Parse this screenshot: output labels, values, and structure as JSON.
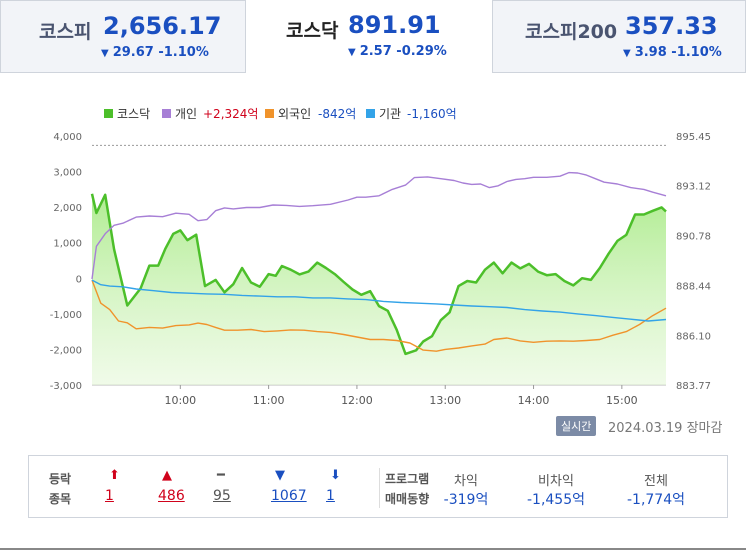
{
  "tabs": [
    {
      "name": "코스피",
      "value": "2,656.17",
      "change": "29.67 -1.10%",
      "arrow": "▼",
      "active": false
    },
    {
      "name": "코스닥",
      "value": "891.91",
      "change": "2.57 -0.29%",
      "arrow": "▼",
      "active": true
    },
    {
      "name": "코스피200",
      "value": "357.33",
      "change": "3.98 -1.10%",
      "arrow": "▼",
      "active": false
    }
  ],
  "legend": [
    {
      "name": "코스닥",
      "value": "",
      "color": "#4cbf2a"
    },
    {
      "name": "개인",
      "value": "+2,324억",
      "color": "#a77fd6",
      "value_color": "#d0021b"
    },
    {
      "name": "외국인",
      "value": "-842억",
      "color": "#f0932b",
      "value_color": "#1a4fc0"
    },
    {
      "name": "기관",
      "value": "-1,160억",
      "color": "#33a3e8",
      "value_color": "#1a4fc0"
    }
  ],
  "chart_data": {
    "type": "line",
    "title": "",
    "x_ticks": [
      "10:00",
      "11:00",
      "12:00",
      "13:00",
      "14:00",
      "15:00"
    ],
    "y_left_ticks": [
      "4,000",
      "3,000",
      "2,000",
      "1,000",
      "0",
      "-1,000",
      "-2,000",
      "-3,000"
    ],
    "y_right_ticks": [
      "895.45",
      "893.12",
      "890.78",
      "888.44",
      "886.10",
      "883.77"
    ],
    "ylim_left": [
      -3000,
      4000
    ],
    "ylim_right": [
      883.77,
      895.45
    ],
    "xlim_hours": [
      9.0,
      15.5
    ],
    "reference_line": 895.01,
    "series": [
      {
        "name": "코스닥",
        "axis": "right",
        "color": "#4cbf2a",
        "x": [
          9.0,
          9.05,
          9.15,
          9.25,
          9.4,
          9.55,
          9.65,
          9.75,
          9.83,
          9.92,
          10.0,
          10.08,
          10.18,
          10.28,
          10.4,
          10.5,
          10.6,
          10.7,
          10.8,
          10.9,
          11.0,
          11.08,
          11.15,
          11.25,
          11.35,
          11.45,
          11.55,
          11.65,
          11.75,
          11.85,
          11.95,
          12.05,
          12.15,
          12.25,
          12.35,
          12.45,
          12.55,
          12.67,
          12.75,
          12.85,
          12.95,
          13.05,
          13.15,
          13.25,
          13.35,
          13.45,
          13.55,
          13.65,
          13.75,
          13.85,
          13.95,
          14.05,
          14.15,
          14.25,
          14.35,
          14.45,
          14.55,
          14.65,
          14.75,
          14.85,
          14.95,
          15.05,
          15.15,
          15.25,
          15.35,
          15.45,
          15.5
        ],
        "y": [
          892.74,
          891.84,
          892.69,
          890.13,
          887.5,
          888.3,
          889.37,
          889.37,
          890.16,
          890.86,
          891.02,
          890.56,
          890.82,
          888.41,
          888.7,
          888.12,
          888.5,
          889.26,
          888.58,
          888.38,
          888.97,
          888.89,
          889.35,
          889.18,
          888.96,
          889.09,
          889.51,
          889.26,
          888.97,
          888.6,
          888.25,
          888.0,
          888.17,
          887.47,
          887.25,
          886.36,
          885.23,
          885.4,
          885.81,
          886.06,
          886.81,
          887.18,
          888.41,
          888.65,
          888.58,
          889.18,
          889.51,
          889.01,
          889.51,
          889.24,
          889.45,
          889.09,
          888.92,
          888.97,
          888.65,
          888.44,
          888.78,
          888.7,
          889.26,
          889.93,
          890.53,
          890.81,
          891.77,
          891.77,
          891.94,
          892.1,
          891.91
        ]
      },
      {
        "name": "개인",
        "axis": "left",
        "color": "#a77fd6",
        "x": [
          9.0,
          9.05,
          9.15,
          9.25,
          9.35,
          9.5,
          9.65,
          9.8,
          9.95,
          10.1,
          10.2,
          10.3,
          10.4,
          10.5,
          10.6,
          10.75,
          10.9,
          11.05,
          11.2,
          11.35,
          11.5,
          11.7,
          11.9,
          12.0,
          12.1,
          12.25,
          12.4,
          12.55,
          12.65,
          12.8,
          12.95,
          13.1,
          13.2,
          13.3,
          13.4,
          13.5,
          13.6,
          13.7,
          13.8,
          13.9,
          14.0,
          14.15,
          14.3,
          14.4,
          14.5,
          14.6,
          14.7,
          14.8,
          14.95,
          15.1,
          15.25,
          15.35,
          15.5
        ],
        "y": [
          -0.02,
          0.9,
          1.25,
          1.49,
          1.55,
          1.72,
          1.75,
          1.73,
          1.83,
          1.8,
          1.62,
          1.65,
          1.9,
          1.98,
          1.95,
          1.99,
          1.99,
          2.06,
          2.05,
          2.02,
          2.04,
          2.08,
          2.2,
          2.28,
          2.28,
          2.32,
          2.5,
          2.62,
          2.83,
          2.85,
          2.8,
          2.75,
          2.68,
          2.64,
          2.65,
          2.55,
          2.6,
          2.72,
          2.78,
          2.8,
          2.84,
          2.84,
          2.87,
          2.97,
          2.96,
          2.9,
          2.8,
          2.7,
          2.65,
          2.55,
          2.5,
          2.42,
          2.32
        ]
      },
      {
        "name": "외국인",
        "axis": "left",
        "color": "#f0932b",
        "x": [
          9.0,
          9.1,
          9.2,
          9.3,
          9.4,
          9.5,
          9.65,
          9.8,
          9.95,
          10.1,
          10.2,
          10.3,
          10.4,
          10.5,
          10.65,
          10.8,
          10.95,
          11.1,
          11.25,
          11.4,
          11.55,
          11.7,
          11.85,
          12.0,
          12.15,
          12.3,
          12.45,
          12.6,
          12.75,
          12.9,
          13.0,
          13.15,
          13.3,
          13.45,
          13.55,
          13.7,
          13.85,
          14.0,
          14.15,
          14.3,
          14.45,
          14.6,
          14.75,
          14.9,
          15.05,
          15.2,
          15.35,
          15.5
        ],
        "y": [
          -0.05,
          -0.7,
          -0.88,
          -1.2,
          -1.25,
          -1.42,
          -1.38,
          -1.4,
          -1.33,
          -1.31,
          -1.26,
          -1.3,
          -1.38,
          -1.46,
          -1.46,
          -1.44,
          -1.5,
          -1.48,
          -1.45,
          -1.46,
          -1.5,
          -1.52,
          -1.58,
          -1.65,
          -1.72,
          -1.72,
          -1.75,
          -1.82,
          -2.02,
          -2.05,
          -2.0,
          -1.96,
          -1.9,
          -1.85,
          -1.72,
          -1.68,
          -1.76,
          -1.8,
          -1.77,
          -1.76,
          -1.77,
          -1.75,
          -1.72,
          -1.6,
          -1.5,
          -1.3,
          -1.05,
          -0.84
        ]
      },
      {
        "name": "기관",
        "axis": "left",
        "color": "#33a3e8",
        "x": [
          9.0,
          9.1,
          9.2,
          9.35,
          9.5,
          9.7,
          9.9,
          10.1,
          10.3,
          10.5,
          10.7,
          10.9,
          11.1,
          11.3,
          11.5,
          11.7,
          11.9,
          12.1,
          12.3,
          12.5,
          12.7,
          12.9,
          13.1,
          13.3,
          13.5,
          13.7,
          13.9,
          14.1,
          14.3,
          14.5,
          14.7,
          14.9,
          15.1,
          15.3,
          15.5
        ],
        "y": [
          -0.05,
          -0.18,
          -0.22,
          -0.24,
          -0.3,
          -0.35,
          -0.4,
          -0.42,
          -0.44,
          -0.45,
          -0.48,
          -0.5,
          -0.52,
          -0.52,
          -0.55,
          -0.55,
          -0.58,
          -0.6,
          -0.65,
          -0.68,
          -0.7,
          -0.72,
          -0.75,
          -0.78,
          -0.8,
          -0.82,
          -0.88,
          -0.92,
          -0.95,
          -1.0,
          -1.05,
          -1.1,
          -1.15,
          -1.2,
          -1.16
        ]
      }
    ]
  },
  "status": {
    "badge": "실시간",
    "date": "2024.03.19",
    "session": "장마감"
  },
  "breadth": {
    "label_line1": "등락",
    "label_line2": "종목",
    "items": [
      {
        "icon": "up-limit-icon",
        "glyph": "⬆",
        "count": "1",
        "color": "#d0021b"
      },
      {
        "icon": "up-icon",
        "glyph": "▲",
        "count": "486",
        "color": "#d0021b"
      },
      {
        "icon": "flat-icon",
        "glyph": "━",
        "count": "95",
        "color": "#555555"
      },
      {
        "icon": "down-icon",
        "glyph": "▼",
        "count": "1067",
        "color": "#1a4fc0"
      },
      {
        "icon": "down-limit-icon",
        "glyph": "⬇",
        "count": "1",
        "color": "#1a4fc0"
      }
    ]
  },
  "program": {
    "label_line1": "프로그램",
    "label_line2": "매매동향",
    "columns": [
      {
        "head": "차익",
        "value": "-319억"
      },
      {
        "head": "비차익",
        "value": "-1,455억"
      },
      {
        "head": "전체",
        "value": "-1,774억"
      }
    ]
  }
}
